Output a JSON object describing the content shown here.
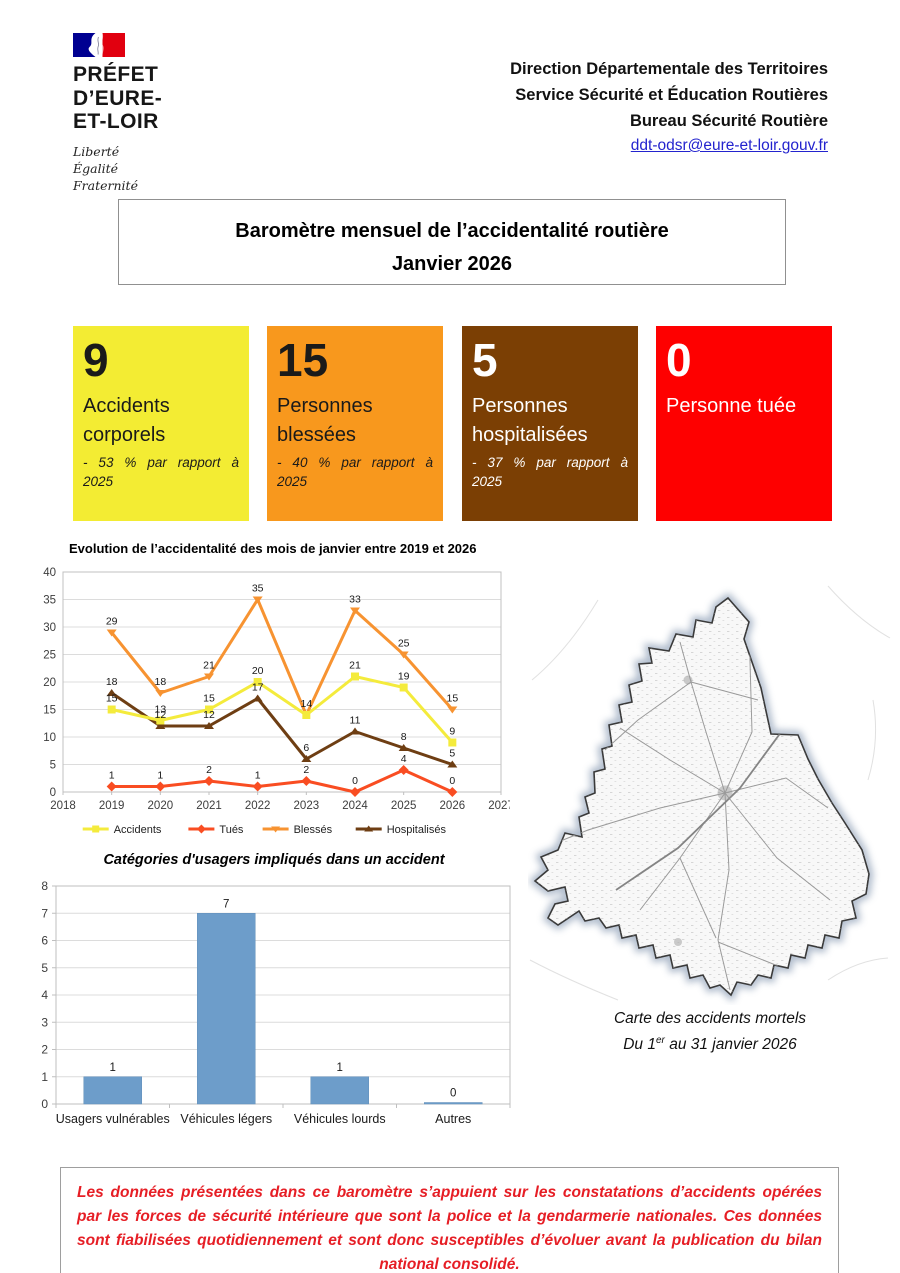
{
  "header": {
    "logo": {
      "region_lines": [
        "PRÉFET",
        "D’EURE-",
        "ET-LOIR"
      ],
      "motto_lines": [
        "Liberté",
        "Égalité",
        "Fraternité"
      ]
    },
    "org_lines": [
      "Direction Départementale des Territoires",
      "Service Sécurité et Éducation Routières",
      "Bureau Sécurité Routière"
    ],
    "email": "ddt-odsr@eure-et-loir.gouv.fr"
  },
  "title_box": {
    "line1": "Baromètre mensuel de l’accidentalité routière",
    "line2": "Janvier 2026"
  },
  "stats": [
    {
      "value": "9",
      "label": "Accidents corporels",
      "delta": "- 53 % par rapport à",
      "delta_year": "2025",
      "bg": "#F3EC33",
      "text": "#1a1a1a"
    },
    {
      "value": "15",
      "label": "Personnes blessées",
      "delta": "- 40 % par rapport à",
      "delta_year": "2025",
      "bg": "#F8981D",
      "text": "#1a1a1a"
    },
    {
      "value": "5",
      "label": "Personnes hospitalisées",
      "delta": "- 37 % par rapport à",
      "delta_year": "2025",
      "bg": "#7B3F04",
      "text": "#ffffff"
    },
    {
      "value": "0",
      "label": "Personne tuée",
      "delta": "",
      "delta_year": "",
      "bg": "#FE0000",
      "text": "#ffffff"
    }
  ],
  "map_panel": {
    "caption_line1": "Carte des accidents mortels",
    "caption_prefix": "Du 1",
    "caption_sup": "er",
    "caption_suffix": " au 31 janvier 2026"
  },
  "disclaimer": "Les données présentées dans ce baromètre s’appuient sur les constatations d’accidents opérées par les forces de sécurité intérieure que sont la police et la gendarmerie nationales. Ces données sont fiabilisées quotidiennement et sont donc susceptibles d’évoluer avant la publication du bilan national consolidé.",
  "chart_data": [
    {
      "type": "line",
      "title": "Evolution de l’accidentalité des mois de janvier entre 2019 et 2026",
      "x": [
        2019,
        2020,
        2021,
        2022,
        2023,
        2024,
        2025,
        2026
      ],
      "xlim": [
        2018,
        2027
      ],
      "ylim": [
        0,
        40
      ],
      "ytick_step": 5,
      "grid": true,
      "legend_position": "bottom",
      "series": [
        {
          "name": "Accidents",
          "color": "#F4EB3C",
          "marker": "square",
          "values": [
            15,
            13,
            15,
            20,
            14,
            21,
            19,
            9
          ],
          "labels": [
            15,
            13,
            15,
            20,
            null,
            21,
            19,
            9
          ]
        },
        {
          "name": "Tués",
          "color": "#F94D22",
          "marker": "diamond",
          "values": [
            1,
            1,
            2,
            1,
            2,
            0,
            4,
            0
          ],
          "labels": [
            1,
            1,
            2,
            1,
            2,
            0,
            4,
            0
          ]
        },
        {
          "name": "Blessés",
          "color": "#F79331",
          "marker": "triangle-down",
          "values": [
            29,
            18,
            21,
            35,
            14,
            33,
            25,
            15
          ],
          "labels": [
            29,
            18,
            21,
            35,
            14,
            33,
            25,
            15
          ]
        },
        {
          "name": "Hospitalisés",
          "color": "#6E3E13",
          "marker": "triangle-up",
          "values": [
            18,
            12,
            12,
            17,
            6,
            11,
            8,
            5
          ],
          "labels": [
            18,
            12,
            12,
            17,
            6,
            11,
            8,
            5
          ]
        }
      ]
    },
    {
      "type": "bar",
      "title": "Catégories d'usagers impliqués dans un accident",
      "categories": [
        "Usagers vulnérables",
        "Véhicules légers",
        "Véhicules lourds",
        "Autres"
      ],
      "values": [
        1,
        7,
        1,
        0
      ],
      "bar_color": "#6D9DCA",
      "ylim": [
        0,
        8
      ],
      "ytick_step": 1,
      "grid": true
    }
  ]
}
